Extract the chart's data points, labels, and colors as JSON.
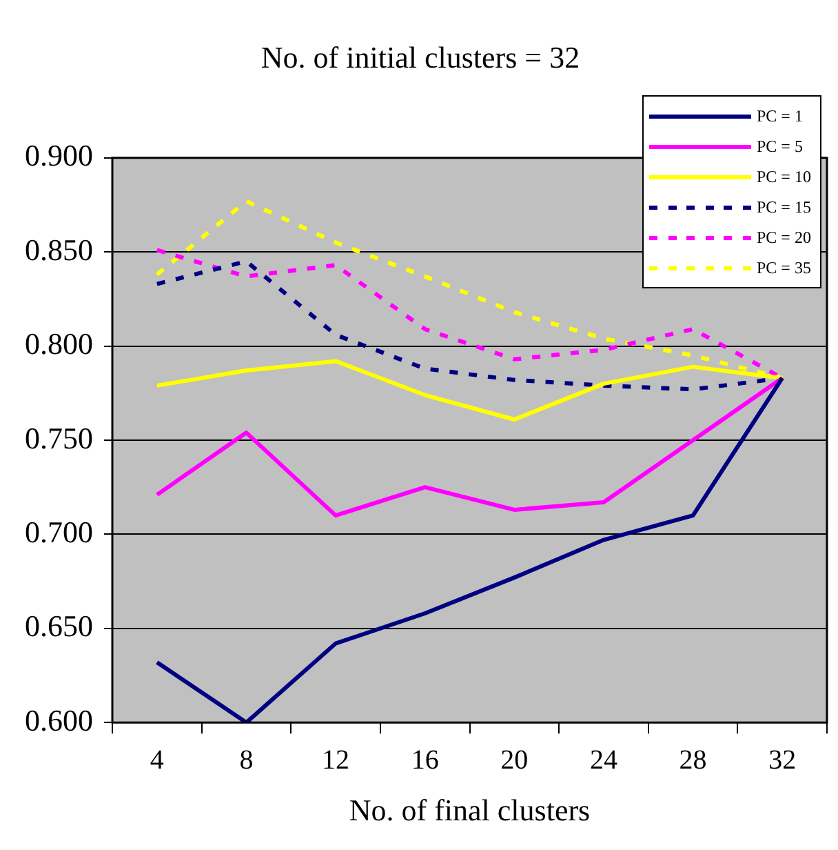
{
  "chart_data": {
    "type": "line",
    "title": "No. of initial clusters = 32",
    "xlabel": "No. of final clusters",
    "categories": [
      "4",
      "8",
      "12",
      "16",
      "20",
      "24",
      "28",
      "32"
    ],
    "ylim": [
      0.6,
      0.9
    ],
    "yticks": [
      {
        "value": 0.6,
        "label": "0.600"
      },
      {
        "value": 0.65,
        "label": "0.650"
      },
      {
        "value": 0.7,
        "label": "0.700"
      },
      {
        "value": 0.75,
        "label": "0.750"
      },
      {
        "value": 0.8,
        "label": "0.800"
      },
      {
        "value": 0.85,
        "label": "0.850"
      },
      {
        "value": 0.9,
        "label": "0.900"
      }
    ],
    "grid": "y",
    "legend": "top right",
    "marker": "none",
    "series": [
      {
        "name": "PC = 1",
        "color": "#000080",
        "line_style": "solid",
        "values": [
          0.632,
          0.6,
          0.642,
          0.658,
          0.677,
          0.697,
          0.71,
          0.783
        ]
      },
      {
        "name": "PC = 5",
        "color": "#ff00ff",
        "line_style": "solid",
        "values": [
          0.721,
          0.754,
          0.71,
          0.725,
          0.713,
          0.717,
          0.75,
          0.783
        ]
      },
      {
        "name": "PC = 10",
        "color": "#ffff00",
        "line_style": "solid",
        "values": [
          0.779,
          0.787,
          0.792,
          0.774,
          0.761,
          0.78,
          0.789,
          0.783
        ]
      },
      {
        "name": "PC = 15",
        "color": "#000080",
        "line_style": "dashed",
        "values": [
          0.833,
          0.845,
          0.806,
          0.788,
          0.782,
          0.779,
          0.777,
          0.783
        ]
      },
      {
        "name": "PC = 20",
        "color": "#ff00ff",
        "line_style": "dashed",
        "values": [
          0.851,
          0.837,
          0.843,
          0.809,
          0.793,
          0.798,
          0.809,
          0.783
        ]
      },
      {
        "name": "PC = 35",
        "color": "#ffff00",
        "line_style": "dashed",
        "values": [
          0.838,
          0.877,
          0.855,
          0.837,
          0.818,
          0.804,
          0.795,
          0.783
        ]
      }
    ]
  }
}
